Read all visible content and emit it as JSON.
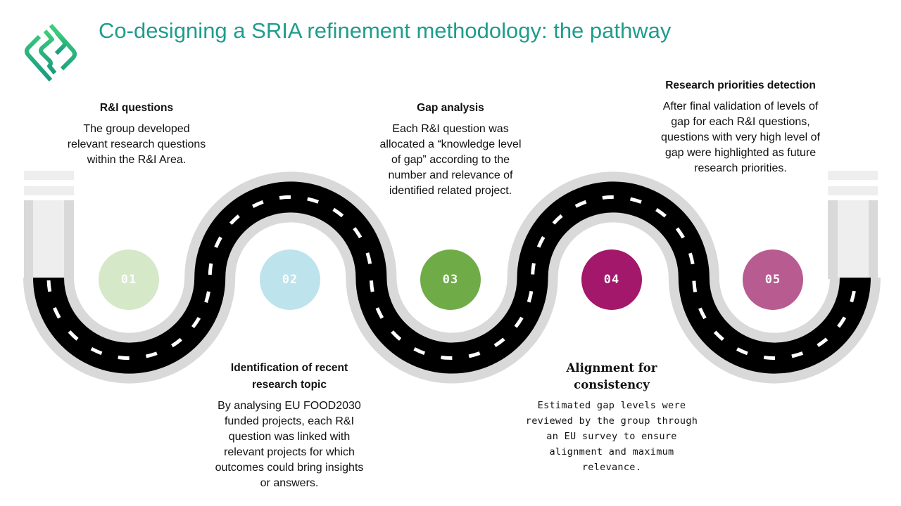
{
  "title": "Co-designing a SRIA refinement methodology: the pathway",
  "logo": {
    "icon": "sria-s-logo",
    "colors": [
      "#3ccf7a",
      "#1a9a80"
    ]
  },
  "road": {
    "edge_color": "#d9d9d9",
    "asphalt_color": "#000000",
    "lane_color": "#ffffff",
    "shoulder_color": "#eeeeee"
  },
  "steps": [
    {
      "number": "01",
      "color": "#d5e8c8",
      "title": [
        "R&I questions"
      ],
      "body": [
        "The group developed",
        "relevant research questions",
        "within the R&I Area."
      ]
    },
    {
      "number": "02",
      "color": "#bde3ec",
      "title": [
        "Identification of recent",
        "research topic"
      ],
      "body": [
        "By analysing EU FOOD2030",
        "funded projects, each R&I",
        "question was linked with",
        "relevant projects for which",
        "outcomes could bring insights",
        "or answers."
      ]
    },
    {
      "number": "03",
      "color": "#6fac47",
      "title": [
        "Gap analysis"
      ],
      "body": [
        "Each R&I question was",
        "allocated a “knowledge level",
        "of gap” according to the",
        "number and relevance of",
        "identified related project."
      ]
    },
    {
      "number": "04",
      "color": "#a3186a",
      "title": [
        "Alignment for",
        "consistency"
      ],
      "body": [
        "Estimated gap levels were",
        "reviewed by the group through",
        "an EU survey to ensure",
        "alignment and maximum",
        "relevance."
      ]
    },
    {
      "number": "05",
      "color": "#b85b91",
      "title": [
        "Research priorities detection"
      ],
      "body": [
        "After final validation of levels of",
        "gap for each R&I questions,",
        "questions with very high level of",
        "gap were highlighted as future",
        "research priorities."
      ]
    }
  ]
}
